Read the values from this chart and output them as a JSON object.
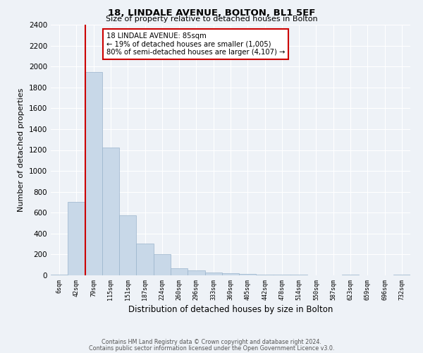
{
  "title1": "18, LINDALE AVENUE, BOLTON, BL1 5EF",
  "title2": "Size of property relative to detached houses in Bolton",
  "xlabel": "Distribution of detached houses by size in Bolton",
  "ylabel": "Number of detached properties",
  "bar_color": "#c8d8e8",
  "bar_edge_color": "#9ab4cc",
  "bin_labels": [
    "6sqm",
    "42sqm",
    "79sqm",
    "115sqm",
    "151sqm",
    "187sqm",
    "224sqm",
    "260sqm",
    "296sqm",
    "333sqm",
    "369sqm",
    "405sqm",
    "442sqm",
    "478sqm",
    "514sqm",
    "550sqm",
    "587sqm",
    "623sqm",
    "659sqm",
    "696sqm",
    "732sqm"
  ],
  "bar_heights": [
    5,
    700,
    1950,
    1225,
    575,
    305,
    200,
    70,
    45,
    30,
    20,
    15,
    10,
    8,
    5,
    3,
    2,
    5,
    2,
    2,
    8
  ],
  "ylim": [
    0,
    2400
  ],
  "yticks": [
    0,
    200,
    400,
    600,
    800,
    1000,
    1200,
    1400,
    1600,
    1800,
    2000,
    2200,
    2400
  ],
  "property_line_x": 1.5,
  "annotation_line1": "18 LINDALE AVENUE: 85sqm",
  "annotation_line2": "← 19% of detached houses are smaller (1,005)",
  "annotation_line3": "80% of semi-detached houses are larger (4,107) →",
  "vline_color": "#cc0000",
  "annotation_box_facecolor": "#ffffff",
  "annotation_box_edgecolor": "#cc0000",
  "footer1": "Contains HM Land Registry data © Crown copyright and database right 2024.",
  "footer2": "Contains public sector information licensed under the Open Government Licence v3.0.",
  "bg_color": "#eef2f7",
  "grid_color": "#ffffff"
}
